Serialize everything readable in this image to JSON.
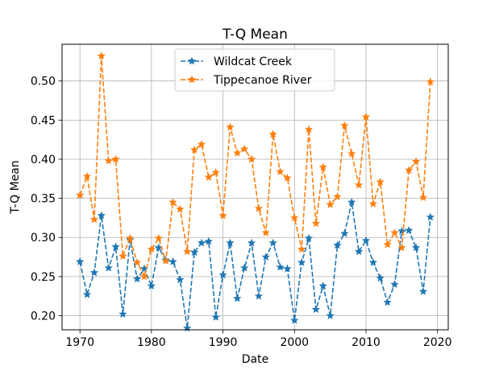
{
  "chart_data": {
    "type": "line",
    "title": "T-Q Mean",
    "xlabel": "Date",
    "ylabel": "T-Q Mean",
    "xlim": [
      1967.5,
      2021.5
    ],
    "ylim": [
      0.182,
      0.547
    ],
    "x_ticks": [
      1970,
      1980,
      1990,
      2000,
      2010,
      2020
    ],
    "y_ticks": [
      0.2,
      0.25,
      0.3,
      0.35,
      0.4,
      0.45,
      0.5
    ],
    "y_tick_labels": [
      "0.20",
      "0.25",
      "0.30",
      "0.35",
      "0.40",
      "0.45",
      "0.50"
    ],
    "grid": true,
    "legend_position": "top-center",
    "x": [
      1970,
      1971,
      1972,
      1973,
      1974,
      1975,
      1976,
      1977,
      1978,
      1979,
      1980,
      1981,
      1982,
      1983,
      1984,
      1985,
      1986,
      1987,
      1988,
      1989,
      1990,
      1991,
      1992,
      1993,
      1994,
      1995,
      1996,
      1997,
      1998,
      1999,
      2000,
      2001,
      2002,
      2003,
      2004,
      2005,
      2006,
      2007,
      2008,
      2009,
      2010,
      2011,
      2012,
      2013,
      2014,
      2015,
      2016,
      2017,
      2018,
      2019
    ],
    "series": [
      {
        "name": "Wildcat Creek",
        "color": "#1f77b4",
        "marker": "star",
        "values": [
          0.269,
          0.227,
          0.255,
          0.328,
          0.261,
          0.288,
          0.202,
          0.297,
          0.247,
          0.26,
          0.238,
          0.287,
          0.271,
          0.269,
          0.246,
          0.184,
          0.281,
          0.293,
          0.295,
          0.198,
          0.252,
          0.293,
          0.222,
          0.261,
          0.293,
          0.225,
          0.275,
          0.293,
          0.262,
          0.26,
          0.194,
          0.268,
          0.299,
          0.208,
          0.238,
          0.2,
          0.29,
          0.305,
          0.345,
          0.282,
          0.296,
          0.268,
          0.248,
          0.217,
          0.24,
          0.308,
          0.309,
          0.287,
          0.231,
          0.326
        ]
      },
      {
        "name": "Tippecanoe River",
        "color": "#ff7f0e",
        "marker": "star",
        "values": [
          0.354,
          0.378,
          0.323,
          0.532,
          0.398,
          0.4,
          0.276,
          0.299,
          0.268,
          0.25,
          0.285,
          0.299,
          0.27,
          0.345,
          0.336,
          0.282,
          0.412,
          0.419,
          0.377,
          0.383,
          0.328,
          0.441,
          0.408,
          0.413,
          0.4,
          0.337,
          0.306,
          0.432,
          0.384,
          0.376,
          0.325,
          0.285,
          0.438,
          0.318,
          0.39,
          0.342,
          0.352,
          0.443,
          0.407,
          0.367,
          0.454,
          0.343,
          0.371,
          0.291,
          0.306,
          0.287,
          0.386,
          0.397,
          0.351,
          0.499
        ]
      }
    ]
  }
}
